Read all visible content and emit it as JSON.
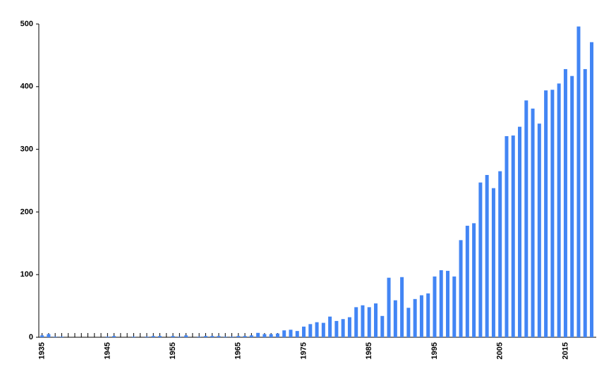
{
  "chart_data": {
    "type": "bar",
    "color": "#4285f4",
    "x": [
      1935,
      1936,
      1937,
      1938,
      1939,
      1940,
      1941,
      1942,
      1943,
      1944,
      1945,
      1946,
      1947,
      1948,
      1949,
      1950,
      1951,
      1952,
      1953,
      1954,
      1955,
      1956,
      1957,
      1958,
      1959,
      1960,
      1961,
      1962,
      1963,
      1964,
      1965,
      1966,
      1967,
      1968,
      1969,
      1970,
      1971,
      1972,
      1973,
      1974,
      1975,
      1976,
      1977,
      1978,
      1979,
      1980,
      1981,
      1982,
      1983,
      1984,
      1985,
      1986,
      1987,
      1988,
      1989,
      1990,
      1991,
      1992,
      1993,
      1994,
      1995,
      1996,
      1997,
      1998,
      1999,
      2000,
      2001,
      2002,
      2003,
      2004,
      2005,
      2006,
      2007,
      2008,
      2009,
      2010,
      2011,
      2012,
      2013,
      2014,
      2015,
      2016,
      2017,
      2018,
      2019
    ],
    "values": [
      3,
      5,
      1,
      1,
      0,
      0,
      0,
      0,
      0,
      0,
      1,
      2,
      0,
      0,
      1,
      0,
      1,
      2,
      2,
      0,
      2,
      1,
      3,
      0,
      1,
      2,
      2,
      2,
      1,
      1,
      2,
      2,
      3,
      7,
      5,
      5,
      6,
      11,
      12,
      10,
      17,
      21,
      24,
      23,
      33,
      26,
      29,
      32,
      48,
      51,
      48,
      54,
      34,
      95,
      59,
      96,
      47,
      61,
      67,
      70,
      97,
      107,
      106,
      97,
      155,
      178,
      182,
      247,
      259,
      238,
      265,
      321,
      322,
      336,
      378,
      365,
      341,
      394,
      395,
      405,
      428,
      417,
      496,
      428,
      471
    ],
    "xlim": [
      1934.5,
      2019.7
    ],
    "xticks": [
      1935,
      1945,
      1955,
      1965,
      1975,
      1985,
      1995,
      2005,
      2015
    ],
    "ylim": [
      0,
      500
    ],
    "yticks": [
      0,
      100,
      200,
      300,
      400,
      500
    ]
  }
}
